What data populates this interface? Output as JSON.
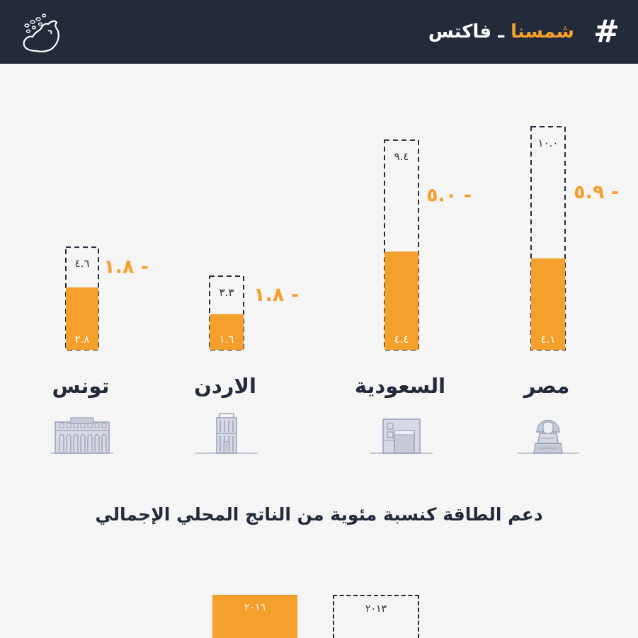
{
  "header": {
    "brand_accent": "شمسنا",
    "brand_sep": " ـ ",
    "brand_rest": "فاكتس",
    "hash": "#"
  },
  "colors": {
    "accent": "#f5a02d",
    "dark": "#232b3b",
    "background": "#f5f5f5",
    "icon": "#9aa0b8"
  },
  "chart_data": {
    "type": "bar",
    "title": "دعم الطاقة كنسبة مئوية من الناتج المحلي الإجمالي",
    "categories": [
      "مصر",
      "السعودية",
      "الاردن",
      "تونس"
    ],
    "series": [
      {
        "name": "٢٠١٣",
        "values": [
          10.0,
          9.4,
          3.3,
          4.6
        ],
        "labels": [
          "١٠.٠",
          "٩.٤",
          "٣.٣",
          "٤.٦"
        ]
      },
      {
        "name": "٢٠١٦",
        "values": [
          4.1,
          4.4,
          1.6,
          2.8
        ],
        "labels": [
          "٤.١",
          "٤.٤",
          "١.٦",
          "٢.٨"
        ]
      }
    ],
    "change_labels": [
      "٥.٩ -",
      "٥.٠ -",
      "١.٨ -",
      "١.٨ -"
    ],
    "icons": [
      "sphinx-icon",
      "kaaba-icon",
      "petra-icon",
      "tunis-building-icon"
    ]
  }
}
